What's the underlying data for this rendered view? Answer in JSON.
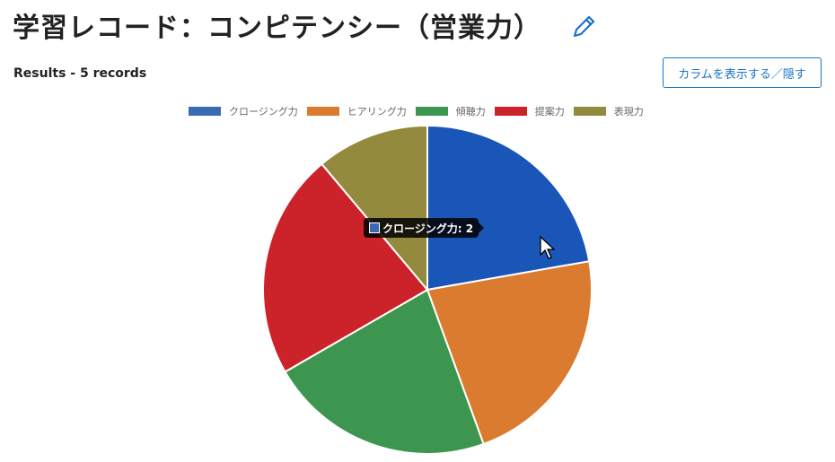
{
  "header": {
    "title": "学習レコード：コンピテンシー（営業力）",
    "results": "Results - 5 records",
    "column_button": "カラムを表示する／隠す"
  },
  "chart_data": {
    "type": "pie",
    "categories": [
      "クロージング力",
      "ヒアリング力",
      "傾聴力",
      "提案力",
      "表現力"
    ],
    "values": [
      2,
      2,
      2,
      2,
      1
    ],
    "colors": [
      "#3a6ab4",
      "#db7b30",
      "#3d9650",
      "#cc2229",
      "#938a3d"
    ],
    "legend": "top",
    "tooltip": {
      "text": "クロージング力: 2"
    }
  }
}
